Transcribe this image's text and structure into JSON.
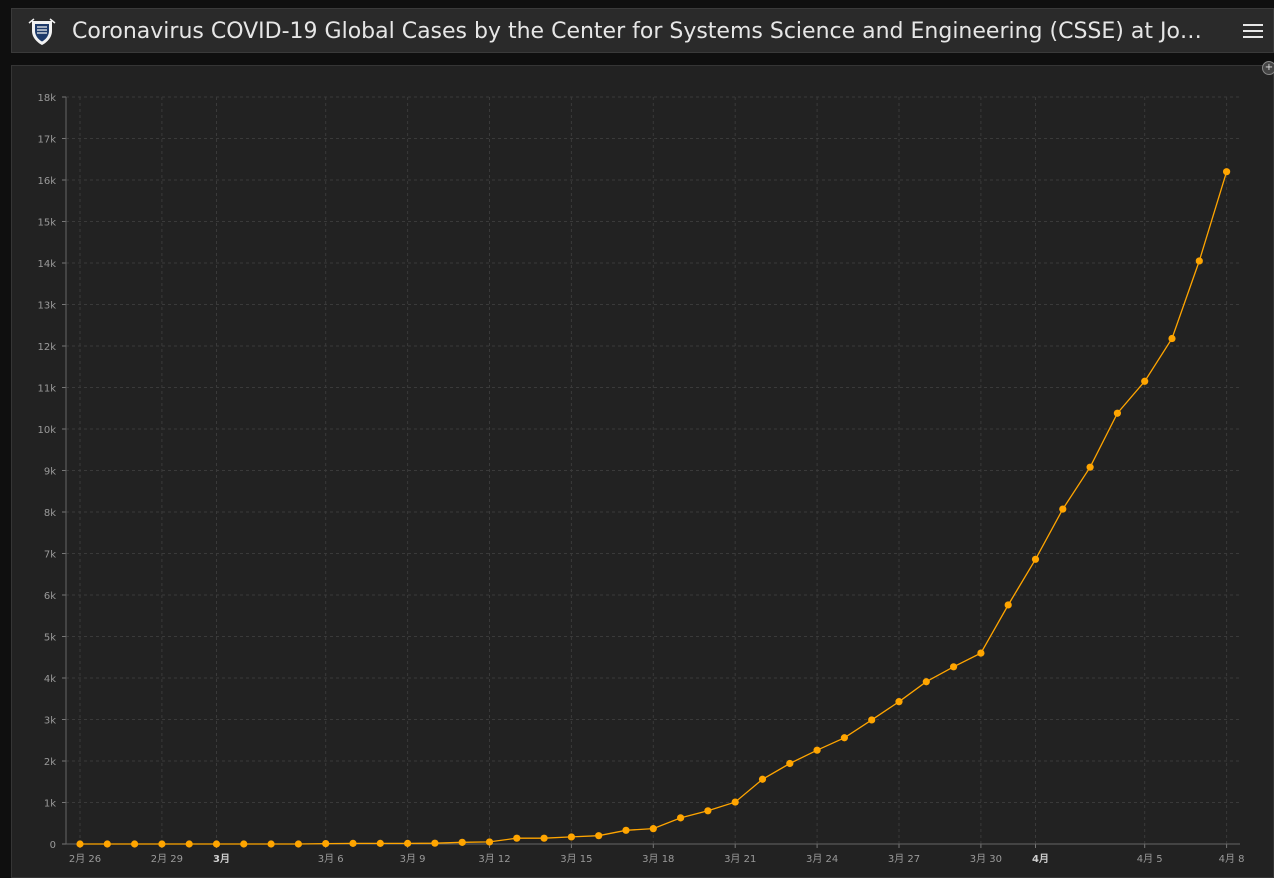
{
  "header": {
    "title": "Coronavirus COVID-19 Global Cases by the Center for Systems Science and Engineering (CSSE) at Joh…",
    "logo_icon": "jhu-shield-icon",
    "menu_icon": "hamburger-menu-icon"
  },
  "colors": {
    "line": "#ffa500",
    "grid": "#3a3a3a",
    "panel": "#222222",
    "header": "#2a2a2a"
  },
  "chart_data": {
    "type": "line",
    "title": "",
    "xlabel": "",
    "ylabel": "",
    "ylim": [
      0,
      18000
    ],
    "yticks": [
      "0",
      "1k",
      "2k",
      "3k",
      "4k",
      "5k",
      "6k",
      "7k",
      "8k",
      "9k",
      "10k",
      "11k",
      "12k",
      "13k",
      "14k",
      "15k",
      "16k",
      "17k",
      "18k"
    ],
    "xticks": [
      {
        "label": "2月 26",
        "day": 0,
        "bold": false
      },
      {
        "label": "2月 29",
        "day": 3,
        "bold": false
      },
      {
        "label": "3月",
        "day": 5,
        "bold": true
      },
      {
        "label": "3月 6",
        "day": 9,
        "bold": false
      },
      {
        "label": "3月 9",
        "day": 12,
        "bold": false
      },
      {
        "label": "3月 12",
        "day": 15,
        "bold": false
      },
      {
        "label": "3月 15",
        "day": 18,
        "bold": false
      },
      {
        "label": "3月 18",
        "day": 21,
        "bold": false
      },
      {
        "label": "3月 21",
        "day": 24,
        "bold": false
      },
      {
        "label": "3月 24",
        "day": 27,
        "bold": false
      },
      {
        "label": "3月 27",
        "day": 30,
        "bold": false
      },
      {
        "label": "3月 30",
        "day": 33,
        "bold": false
      },
      {
        "label": "4月",
        "day": 35,
        "bold": true
      },
      {
        "label": "4月 5",
        "day": 39,
        "bold": false
      },
      {
        "label": "4月 8",
        "day": 42,
        "bold": false
      }
    ],
    "grid": true,
    "series": [
      {
        "values": [
          0,
          0,
          0,
          0,
          0,
          0,
          0,
          0,
          0,
          10,
          15,
          15,
          15,
          20,
          40,
          50,
          140,
          140,
          170,
          200,
          330,
          370,
          630,
          800,
          1010,
          1560,
          1940,
          2260,
          2560,
          2990,
          3430,
          3910,
          4270,
          4600,
          5760,
          6860,
          8070,
          9080,
          10380,
          11150,
          12180,
          14050,
          16200
        ]
      }
    ]
  }
}
